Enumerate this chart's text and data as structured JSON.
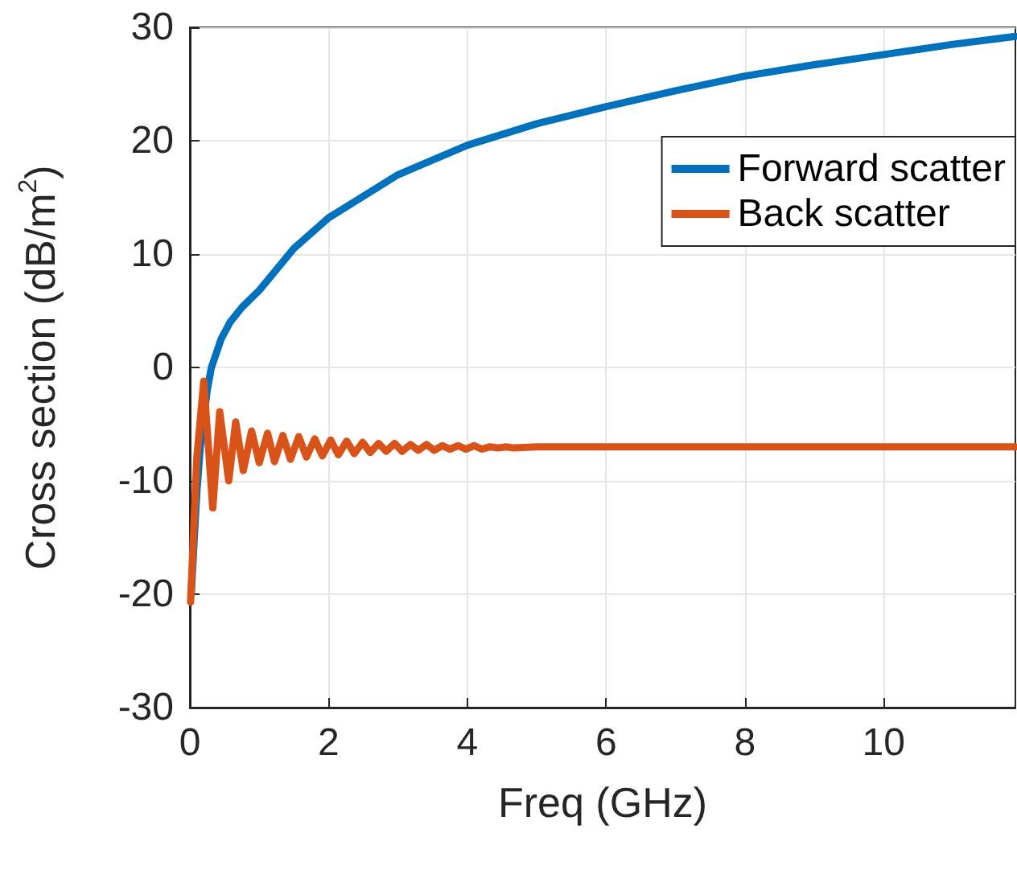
{
  "chart_data": {
    "type": "line",
    "xlabel": "Freq (GHz)",
    "ylabel": "Cross section (dB/m$^{2}$)",
    "xlim": [
      0,
      11.9
    ],
    "xticks": [
      0,
      2,
      4,
      6,
      8,
      10
    ],
    "ylim": [
      -30,
      30
    ],
    "yticks": [
      -30,
      -20,
      -10,
      0,
      10,
      20,
      30
    ],
    "grid": true,
    "legend": "top right",
    "marker": "none",
    "line_style": "solid",
    "series": [
      {
        "name": "Forward scatter",
        "color": "#0072bd",
        "x": [
          0.02,
          0.06,
          0.1,
          0.15,
          0.25,
          0.31,
          0.35,
          0.45,
          0.58,
          0.75,
          1.0,
          1.5,
          2,
          3,
          4,
          5,
          6,
          7,
          8,
          9,
          10,
          11,
          11.9
        ],
        "values": [
          -20,
          -15.4,
          -11,
          -7,
          -2,
          0,
          0.7,
          2.5,
          4.0,
          5.3,
          6.8,
          10.5,
          13.2,
          17,
          19.6,
          21.5,
          23.0,
          24.4,
          25.7,
          26.7,
          27.6,
          28.5,
          29.2
        ]
      },
      {
        "name": "Back scatter",
        "color": "#d95319",
        "x": [
          0.01,
          0.1,
          0.2,
          0.33,
          0.43,
          0.56,
          0.66,
          0.77,
          0.89,
          1.0,
          1.12,
          1.22,
          1.34,
          1.45,
          1.57,
          1.68,
          1.8,
          1.91,
          2.03,
          2.14,
          2.26,
          2.37,
          2.49,
          2.6,
          2.72,
          2.83,
          2.95,
          3.06,
          3.18,
          3.29,
          3.41,
          3.52,
          3.64,
          3.75,
          3.87,
          3.98,
          4.1,
          4.21,
          4.33,
          4.44,
          4.56,
          4.67,
          5,
          6,
          8,
          10,
          11.9
        ],
        "values": [
          -20.7,
          -8,
          -1.2,
          -12.4,
          -3.9,
          -10.0,
          -4.8,
          -9.1,
          -5.6,
          -8.4,
          -5.8,
          -8.3,
          -6.0,
          -8.1,
          -6.1,
          -7.9,
          -6.3,
          -7.8,
          -6.4,
          -7.7,
          -6.5,
          -7.6,
          -6.6,
          -7.5,
          -6.7,
          -7.4,
          -6.7,
          -7.4,
          -6.8,
          -7.3,
          -6.8,
          -7.3,
          -6.9,
          -7.2,
          -6.9,
          -7.2,
          -6.9,
          -7.2,
          -7.0,
          -7.1,
          -7.0,
          -7.1,
          -7.0,
          -7.0,
          -7.0,
          -7.0,
          -7.0
        ]
      }
    ]
  }
}
